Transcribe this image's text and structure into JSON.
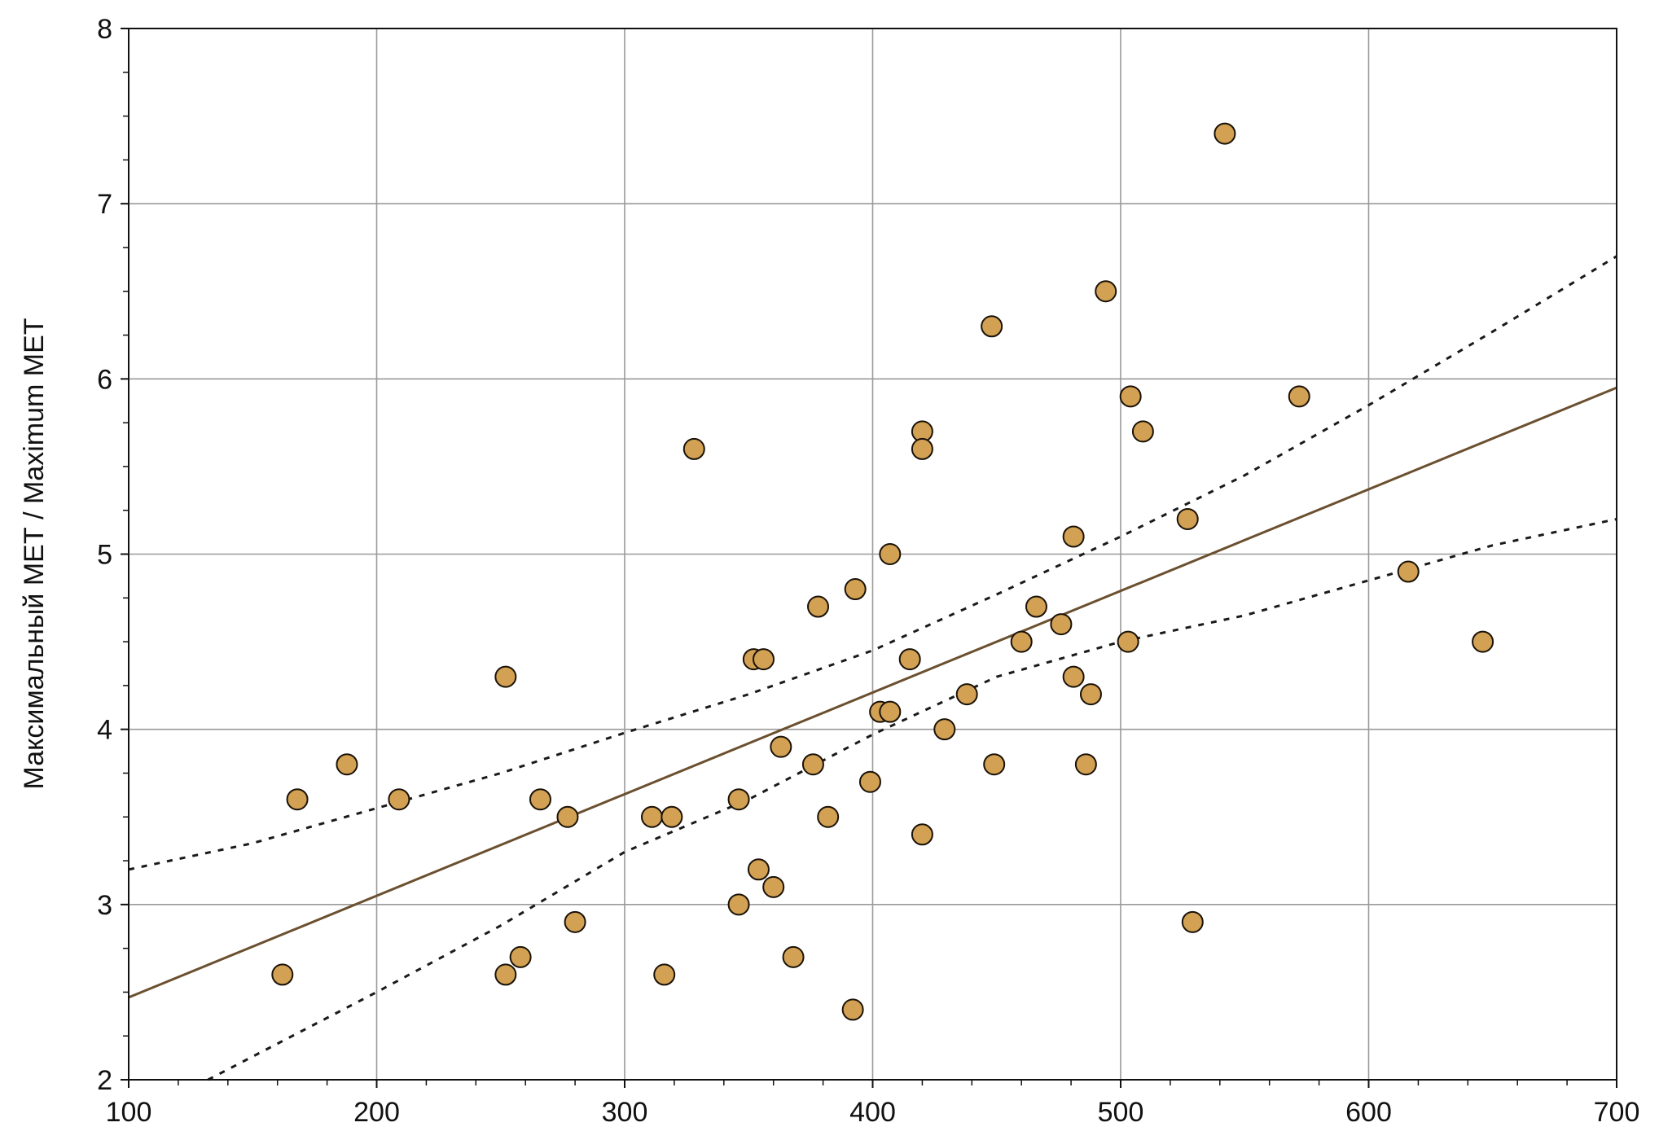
{
  "chart_data": {
    "type": "scatter",
    "title": "",
    "xlabel": "",
    "ylabel": "Максимальный МЕТ / Maximum MET",
    "xlim": [
      100,
      700
    ],
    "ylim": [
      2,
      8
    ],
    "x_ticks": [
      100,
      200,
      300,
      400,
      500,
      600,
      700
    ],
    "y_ticks": [
      2,
      3,
      4,
      5,
      6,
      7,
      8
    ],
    "x_tick_labels": [
      "100",
      "200",
      "300",
      "400",
      "500",
      "600",
      "700"
    ],
    "y_tick_labels": [
      "2",
      "3",
      "4",
      "5",
      "6",
      "7",
      "8"
    ],
    "grid": true,
    "legend": "none",
    "points": [
      {
        "x": 162,
        "y": 2.6
      },
      {
        "x": 168,
        "y": 3.6
      },
      {
        "x": 188,
        "y": 3.8
      },
      {
        "x": 209,
        "y": 3.6
      },
      {
        "x": 252,
        "y": 4.3
      },
      {
        "x": 252,
        "y": 2.6
      },
      {
        "x": 258,
        "y": 2.7
      },
      {
        "x": 266,
        "y": 3.6
      },
      {
        "x": 277,
        "y": 3.5
      },
      {
        "x": 280,
        "y": 2.9
      },
      {
        "x": 311,
        "y": 3.5
      },
      {
        "x": 316,
        "y": 2.6
      },
      {
        "x": 319,
        "y": 3.5
      },
      {
        "x": 328,
        "y": 5.6
      },
      {
        "x": 346,
        "y": 3.6
      },
      {
        "x": 346,
        "y": 3.0
      },
      {
        "x": 352,
        "y": 4.4
      },
      {
        "x": 354,
        "y": 3.2
      },
      {
        "x": 356,
        "y": 4.4
      },
      {
        "x": 360,
        "y": 3.1
      },
      {
        "x": 363,
        "y": 3.9
      },
      {
        "x": 368,
        "y": 2.7
      },
      {
        "x": 376,
        "y": 3.8
      },
      {
        "x": 378,
        "y": 4.7
      },
      {
        "x": 382,
        "y": 3.5
      },
      {
        "x": 392,
        "y": 2.4
      },
      {
        "x": 393,
        "y": 4.8
      },
      {
        "x": 399,
        "y": 3.7
      },
      {
        "x": 403,
        "y": 4.1
      },
      {
        "x": 407,
        "y": 4.1
      },
      {
        "x": 407,
        "y": 5.0
      },
      {
        "x": 415,
        "y": 4.4
      },
      {
        "x": 420,
        "y": 5.7
      },
      {
        "x": 420,
        "y": 5.6
      },
      {
        "x": 420,
        "y": 3.4
      },
      {
        "x": 429,
        "y": 4.0
      },
      {
        "x": 438,
        "y": 4.2
      },
      {
        "x": 448,
        "y": 6.3
      },
      {
        "x": 449,
        "y": 3.8
      },
      {
        "x": 460,
        "y": 4.5
      },
      {
        "x": 466,
        "y": 4.7
      },
      {
        "x": 476,
        "y": 4.6
      },
      {
        "x": 481,
        "y": 5.1
      },
      {
        "x": 481,
        "y": 4.3
      },
      {
        "x": 486,
        "y": 3.8
      },
      {
        "x": 488,
        "y": 4.2
      },
      {
        "x": 494,
        "y": 6.5
      },
      {
        "x": 503,
        "y": 4.5
      },
      {
        "x": 504,
        "y": 5.9
      },
      {
        "x": 509,
        "y": 5.7
      },
      {
        "x": 527,
        "y": 5.2
      },
      {
        "x": 529,
        "y": 2.9
      },
      {
        "x": 542,
        "y": 7.4
      },
      {
        "x": 572,
        "y": 5.9
      },
      {
        "x": 616,
        "y": 4.9
      },
      {
        "x": 646,
        "y": 4.5
      }
    ],
    "regression_line": [
      {
        "x": 100,
        "y": 2.47
      },
      {
        "x": 700,
        "y": 5.95
      }
    ],
    "confidence_upper": [
      {
        "x": 100,
        "y": 3.2
      },
      {
        "x": 150,
        "y": 3.35
      },
      {
        "x": 200,
        "y": 3.55
      },
      {
        "x": 250,
        "y": 3.75
      },
      {
        "x": 300,
        "y": 3.98
      },
      {
        "x": 350,
        "y": 4.2
      },
      {
        "x": 400,
        "y": 4.45
      },
      {
        "x": 450,
        "y": 4.77
      },
      {
        "x": 500,
        "y": 5.1
      },
      {
        "x": 550,
        "y": 5.45
      },
      {
        "x": 600,
        "y": 5.85
      },
      {
        "x": 650,
        "y": 6.27
      },
      {
        "x": 700,
        "y": 6.7
      }
    ],
    "confidence_lower": [
      {
        "x": 132,
        "y": 2.0
      },
      {
        "x": 200,
        "y": 2.5
      },
      {
        "x": 250,
        "y": 2.88
      },
      {
        "x": 300,
        "y": 3.3
      },
      {
        "x": 350,
        "y": 3.6
      },
      {
        "x": 400,
        "y": 3.97
      },
      {
        "x": 450,
        "y": 4.3
      },
      {
        "x": 500,
        "y": 4.5
      },
      {
        "x": 550,
        "y": 4.65
      },
      {
        "x": 600,
        "y": 4.85
      },
      {
        "x": 650,
        "y": 5.05
      },
      {
        "x": 700,
        "y": 5.2
      }
    ],
    "colors": {
      "point_fill": "#d2a153",
      "point_stroke": "#1a1208",
      "regression": "#6b5030",
      "confidence": "#1a1a1a",
      "grid": "#9a9a9a",
      "axis": "#111111"
    }
  }
}
